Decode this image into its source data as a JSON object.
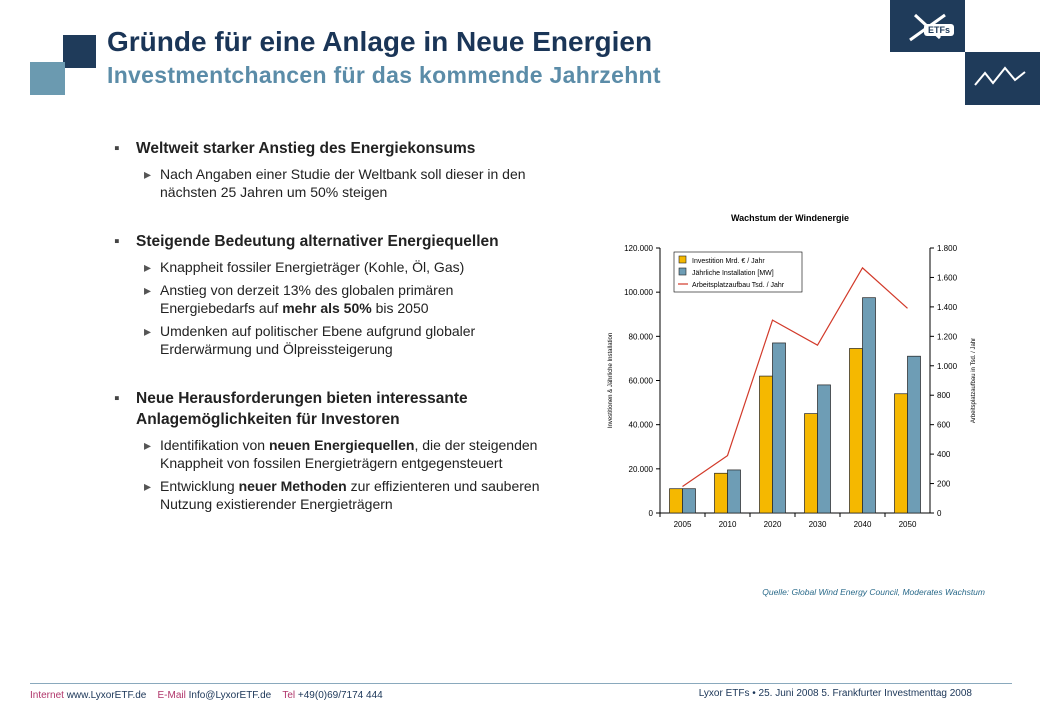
{
  "header": {
    "title": "Gründe für eine Anlage in Neue Energien",
    "subtitle": "Investmentchancen für das kommende Jahrzehnt",
    "logo_text": "ETFs"
  },
  "bullets": [
    {
      "text": "Weltweit starker Anstieg des Energiekonsums",
      "items": [
        [
          "Nach Angaben einer Studie der Weltbank soll dieser in den nächsten 25 Jahren um 50% steigen"
        ]
      ]
    },
    {
      "text": "Steigende Bedeutung alternativer Energiequellen",
      "items": [
        [
          "Knappheit fossiler Energieträger (Kohle, Öl, Gas)"
        ],
        [
          "Anstieg von derzeit 13% des globalen primären Energiebedarfs auf ",
          "mehr als 50%",
          " bis 2050"
        ],
        [
          "Umdenken auf politischer Ebene aufgrund globaler Erderwärmung und Ölpreissteigerung"
        ]
      ]
    },
    {
      "text": "Neue Herausforderungen bieten interessante Anlagemöglichkeiten für Investoren",
      "items": [
        [
          "Identifikation von ",
          "neuen Energiequellen",
          ", die der steigenden Knappheit von fossilen Energieträgern entgegensteuert"
        ],
        [
          "Entwicklung ",
          "neuer Methoden",
          " zur effizienteren und sauberen Nutzung existierender Energieträgern"
        ]
      ]
    }
  ],
  "chart_data": {
    "type": "bar",
    "title": "Wachstum der Windenergie",
    "categories": [
      "2005",
      "2010",
      "2020",
      "2030",
      "2040",
      "2050"
    ],
    "series": [
      {
        "name": "Investition Mrd. € / Jahr",
        "color": "#f5b800",
        "type": "bar",
        "values": [
          11000,
          18000,
          62000,
          45000,
          74500,
          54000
        ]
      },
      {
        "name": "Jährliche Installation [MW]",
        "color": "#6e9db5",
        "type": "bar",
        "values": [
          11000,
          19500,
          77000,
          58000,
          97500,
          71000
        ]
      },
      {
        "name": "Arbeitsplatzaufbau Tsd. / Jahr",
        "color": "#d23a2a",
        "type": "line",
        "axis": "y2",
        "values": [
          180,
          390,
          1310,
          1140,
          1665,
          1390
        ]
      }
    ],
    "ylabel": "Investitionen & Jährliche Installation",
    "y2label": "Arbeitsplatzaufbau in Tsd. / Jahr",
    "ylim": [
      0,
      120000
    ],
    "yticks": [
      0,
      {
        "value": 20000,
        "label": "20.000"
      },
      {
        "value": 40000,
        "label": "40.000"
      },
      {
        "value": 60000,
        "label": "60.000"
      },
      {
        "value": 80000,
        "label": "80.000"
      },
      {
        "value": 100000,
        "label": "100.000"
      },
      {
        "value": 120000,
        "label": "120.000"
      }
    ],
    "y2lim": [
      0,
      1800
    ],
    "y2ticks": [
      0,
      200,
      400,
      600,
      800,
      {
        "value": 1000,
        "label": "1.000"
      },
      {
        "value": 1200,
        "label": "1.200"
      },
      {
        "value": 1400,
        "label": "1.400"
      },
      {
        "value": 1600,
        "label": "1.600"
      },
      {
        "value": 1800,
        "label": "1.800"
      }
    ],
    "source": "Quelle: Global Wind Energy Council, Moderates Wachstum"
  },
  "footer": {
    "internet_label": "Internet",
    "internet": "www.LyxorETF.de",
    "email_label": "E-Mail",
    "email": "Info@LyxorETF.de",
    "tel_label": "Tel",
    "tel": "+49(0)69/7174 444",
    "right": "Lyxor ETFs • 25. Juni 2008 5. Frankfurter Investmenttag 2008"
  }
}
